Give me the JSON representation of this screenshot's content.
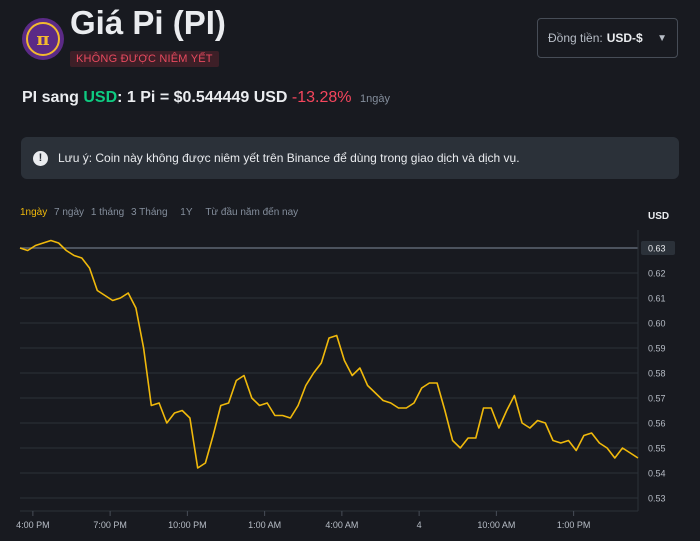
{
  "header": {
    "title": "Giá Pi (PI)",
    "badge": "KHÔNG ĐƯỢC NIÊM YẾT",
    "logo_symbol": "π"
  },
  "currency_select": {
    "label": "Đồng tiền:",
    "value": "USD-$"
  },
  "rate": {
    "prefix": "PI sang",
    "currency": "USD",
    "equation": ": 1 Pi = $0.544449 USD",
    "change": "-13.28%",
    "period": "1ngày"
  },
  "notice": {
    "text": "Lưu ý: Coin này không được niêm yết trên Binance để dùng trong giao dịch và dịch vụ."
  },
  "ranges": [
    "1ngày",
    "7 ngày",
    "1 tháng",
    "3 Tháng",
    "1Y",
    "Từ đầu năm đến nay"
  ],
  "colors": {
    "line": "#f0b90b",
    "positive": "#0ecb81",
    "negative": "#f6465d",
    "background": "#181a20"
  },
  "chart_data": {
    "type": "line",
    "unit_label": "USD",
    "ylim": [
      0.525,
      0.635
    ],
    "y_ticks": [
      "0.53",
      "0.54",
      "0.55",
      "0.56",
      "0.57",
      "0.58",
      "0.59",
      "0.60",
      "0.61",
      "0.62",
      "0.63"
    ],
    "reference_line": 0.63,
    "x_ticks": [
      {
        "label": "4:00 PM",
        "t": 0.5
      },
      {
        "label": "7:00 PM",
        "t": 3.5
      },
      {
        "label": "10:00 PM",
        "t": 6.5
      },
      {
        "label": "1:00 AM",
        "t": 9.5
      },
      {
        "label": "4:00 AM",
        "t": 12.5
      },
      {
        "label": "4",
        "t": 15.5
      },
      {
        "label": "10:00 AM",
        "t": 18.5
      },
      {
        "label": "1:00 PM",
        "t": 21.5
      }
    ],
    "xlim": [
      0,
      24
    ],
    "series": [
      {
        "points": [
          [
            0.0,
            0.63
          ],
          [
            0.3,
            0.629
          ],
          [
            0.6,
            0.631
          ],
          [
            0.9,
            0.632
          ],
          [
            1.2,
            0.633
          ],
          [
            1.5,
            0.632
          ],
          [
            1.8,
            0.629
          ],
          [
            2.1,
            0.627
          ],
          [
            2.4,
            0.626
          ],
          [
            2.7,
            0.622
          ],
          [
            3.0,
            0.613
          ],
          [
            3.3,
            0.611
          ],
          [
            3.6,
            0.609
          ],
          [
            3.9,
            0.61
          ],
          [
            4.2,
            0.612
          ],
          [
            4.5,
            0.606
          ],
          [
            4.8,
            0.59
          ],
          [
            5.1,
            0.567
          ],
          [
            5.4,
            0.568
          ],
          [
            5.7,
            0.56
          ],
          [
            6.0,
            0.564
          ],
          [
            6.3,
            0.565
          ],
          [
            6.6,
            0.562
          ],
          [
            6.9,
            0.542
          ],
          [
            7.2,
            0.544
          ],
          [
            7.5,
            0.555
          ],
          [
            7.8,
            0.567
          ],
          [
            8.1,
            0.568
          ],
          [
            8.4,
            0.577
          ],
          [
            8.7,
            0.579
          ],
          [
            9.0,
            0.57
          ],
          [
            9.3,
            0.567
          ],
          [
            9.6,
            0.568
          ],
          [
            9.9,
            0.563
          ],
          [
            10.2,
            0.563
          ],
          [
            10.5,
            0.562
          ],
          [
            10.8,
            0.567
          ],
          [
            11.1,
            0.575
          ],
          [
            11.4,
            0.58
          ],
          [
            11.7,
            0.584
          ],
          [
            12.0,
            0.594
          ],
          [
            12.3,
            0.595
          ],
          [
            12.6,
            0.585
          ],
          [
            12.9,
            0.579
          ],
          [
            13.2,
            0.582
          ],
          [
            13.5,
            0.575
          ],
          [
            13.8,
            0.572
          ],
          [
            14.1,
            0.569
          ],
          [
            14.4,
            0.568
          ],
          [
            14.7,
            0.566
          ],
          [
            15.0,
            0.566
          ],
          [
            15.3,
            0.568
          ],
          [
            15.6,
            0.574
          ],
          [
            15.9,
            0.576
          ],
          [
            16.2,
            0.576
          ],
          [
            16.5,
            0.565
          ],
          [
            16.8,
            0.553
          ],
          [
            17.1,
            0.55
          ],
          [
            17.4,
            0.554
          ],
          [
            17.7,
            0.554
          ],
          [
            18.0,
            0.566
          ],
          [
            18.3,
            0.566
          ],
          [
            18.6,
            0.558
          ],
          [
            18.9,
            0.565
          ],
          [
            19.2,
            0.571
          ],
          [
            19.5,
            0.56
          ],
          [
            19.8,
            0.558
          ],
          [
            20.1,
            0.561
          ],
          [
            20.4,
            0.56
          ],
          [
            20.7,
            0.553
          ],
          [
            21.0,
            0.552
          ],
          [
            21.3,
            0.553
          ],
          [
            21.6,
            0.549
          ],
          [
            21.9,
            0.555
          ],
          [
            22.2,
            0.556
          ],
          [
            22.5,
            0.552
          ],
          [
            22.8,
            0.55
          ],
          [
            23.1,
            0.546
          ],
          [
            23.4,
            0.55
          ],
          [
            23.7,
            0.548
          ],
          [
            24.0,
            0.546
          ]
        ]
      }
    ]
  }
}
